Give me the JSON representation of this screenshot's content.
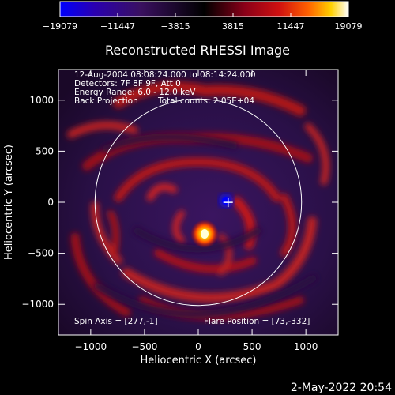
{
  "colorbar": {
    "ticks": [
      "−19079",
      "−11447",
      "−3815",
      "3815",
      "11447",
      "19079"
    ],
    "colors": [
      "#0000ff",
      "#2a00b0",
      "#3a1060",
      "#000000",
      "#8a0018",
      "#d01010",
      "#ff6000",
      "#ffd000",
      "#ffffff"
    ]
  },
  "title": "Reconstructed RHESSI Image",
  "info": {
    "time_start": "12-Aug-2004 08:08:24.000",
    "time_sep": "to",
    "time_end": "08:14:24.000",
    "detectors": "Detectors: 7F 8F 9F, Att 0",
    "energy": "Energy Range: 6.0 - 12.0 keV",
    "method": "Back Projection",
    "counts": "Total counts: 2.05E+04"
  },
  "footer": {
    "spin_axis": "Spin Axis = [277,-1]",
    "flare_position": "Flare Position = [73,-332]"
  },
  "axes": {
    "xlabel": "Heliocentric X (arcsec)",
    "ylabel": "Heliocentric Y (arcsec)",
    "x_ticks": [
      "−1000",
      "−500",
      "0",
      "500",
      "1000"
    ],
    "y_ticks": [
      "1000",
      "500",
      "0",
      "−500",
      "−1000"
    ],
    "xlim": [
      -1300,
      1300
    ],
    "ylim": [
      -1300,
      1300
    ]
  },
  "markers": {
    "spin_axis": [
      277,
      -1
    ],
    "flare_position": [
      73,
      -332
    ]
  },
  "timestamp": "2-May-2022 20:54"
}
